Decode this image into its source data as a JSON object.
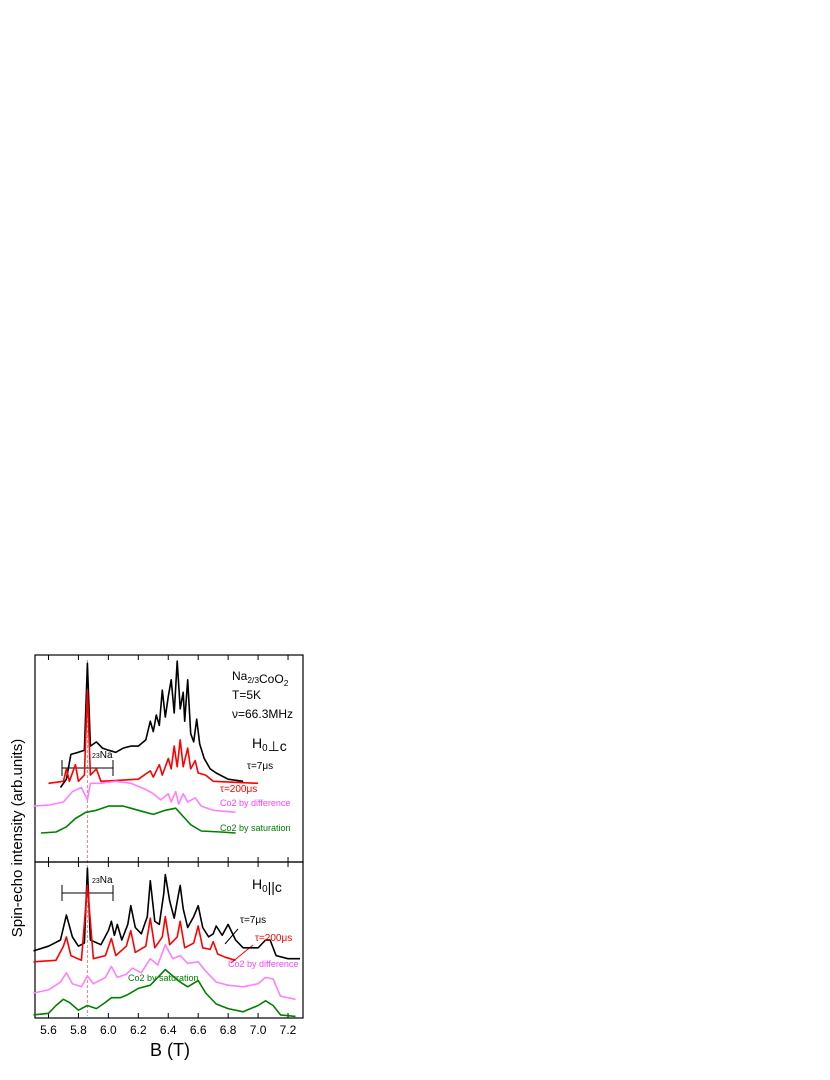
{
  "chart_data": [
    {
      "type": "line",
      "ylabel": "Spin-echo intensity (arb.units)",
      "xlim": [
        5.51,
        7.3
      ],
      "ylim": [
        0,
        10
      ],
      "annotations": [
        {
          "parts": [
            "Na",
            {
              "text": "2/3",
              "shift": "sub"
            },
            "CoO",
            {
              "text": "2",
              "shift": "sub"
            }
          ],
          "color": "#000000"
        },
        {
          "parts": [
            "T=5K"
          ],
          "color": "#000000"
        },
        {
          "parts": [
            "ν=66.3MHz"
          ],
          "color": "#000000"
        },
        {
          "parts": [
            "H",
            {
              "text": "0",
              "shift": "sub"
            },
            "⊥c"
          ],
          "color": "#000000"
        },
        {
          "parts": [
            "τ=7μs"
          ],
          "color": "#000000"
        },
        {
          "parts": [
            "τ=200μs"
          ],
          "color": "#ff0000"
        },
        {
          "parts": [
            "Co2 by difference"
          ],
          "color": "#ff40ff"
        },
        {
          "parts": [
            "Co2 by saturation"
          ],
          "color": "#008000"
        },
        {
          "parts": [
            {
              "text": "23",
              "shift": "sup"
            },
            "Na"
          ],
          "color": "#000000"
        }
      ],
      "series": [
        {
          "name": "τ=7μs",
          "color": "#000000",
          "x": [
            5.68,
            5.72,
            5.75,
            5.8,
            5.84,
            5.86,
            5.88,
            5.92,
            5.96,
            6.0,
            6.05,
            6.1,
            6.15,
            6.2,
            6.25,
            6.28,
            6.3,
            6.32,
            6.34,
            6.36,
            6.38,
            6.4,
            6.42,
            6.44,
            6.46,
            6.48,
            6.5,
            6.51,
            6.53,
            6.55,
            6.57,
            6.59,
            6.61,
            6.64,
            6.68,
            6.72,
            6.8,
            6.9
          ],
          "values": [
            3.6,
            4.0,
            5.2,
            5.3,
            5.4,
            9.6,
            5.6,
            5.8,
            5.5,
            5.4,
            5.3,
            5.5,
            5.6,
            5.6,
            5.9,
            6.8,
            6.3,
            7.1,
            6.6,
            8.3,
            7.0,
            8.0,
            8.8,
            7.2,
            9.7,
            7.4,
            8.2,
            6.8,
            8.8,
            6.2,
            5.8,
            6.9,
            5.7,
            5.0,
            4.5,
            4.3,
            4.0,
            3.9
          ]
        },
        {
          "name": "τ=200μs",
          "color": "#ff0000",
          "x": [
            5.6,
            5.7,
            5.72,
            5.74,
            5.78,
            5.8,
            5.84,
            5.86,
            5.88,
            5.92,
            5.95,
            6.2,
            6.28,
            6.3,
            6.34,
            6.36,
            6.4,
            6.42,
            6.44,
            6.46,
            6.48,
            6.5,
            6.53,
            6.55,
            6.58,
            6.6,
            6.65,
            6.7,
            7.0
          ],
          "values": [
            3.8,
            3.9,
            4.5,
            3.9,
            4.7,
            3.9,
            4.2,
            8.3,
            4.2,
            4.5,
            3.9,
            4.0,
            4.4,
            4.1,
            4.7,
            4.2,
            5.0,
            4.5,
            5.6,
            4.6,
            5.9,
            4.6,
            5.5,
            4.5,
            4.9,
            4.3,
            4.2,
            3.9,
            3.8
          ]
        },
        {
          "name": "Co2 by difference",
          "color": "#ff80ff",
          "x": [
            5.5,
            5.6,
            5.7,
            5.76,
            5.82,
            5.86,
            5.88,
            5.95,
            6.05,
            6.15,
            6.25,
            6.3,
            6.35,
            6.4,
            6.42,
            6.45,
            6.47,
            6.5,
            6.53,
            6.58,
            6.62,
            6.7,
            6.85
          ],
          "values": [
            2.7,
            2.75,
            2.9,
            3.4,
            3.6,
            3.0,
            3.8,
            3.8,
            3.9,
            3.8,
            3.5,
            3.3,
            3.0,
            3.3,
            2.9,
            3.4,
            2.8,
            3.3,
            2.9,
            3.1,
            2.7,
            2.5,
            2.4
          ]
        },
        {
          "name": "Co2 by saturation",
          "color": "#008000",
          "x": [
            5.55,
            5.65,
            5.72,
            5.78,
            5.85,
            5.92,
            6.0,
            6.1,
            6.2,
            6.3,
            6.38,
            6.45,
            6.5,
            6.55,
            6.62,
            6.75,
            6.85
          ],
          "values": [
            1.4,
            1.45,
            1.7,
            2.1,
            2.4,
            2.5,
            2.7,
            2.7,
            2.5,
            2.3,
            2.5,
            2.6,
            2.2,
            1.8,
            1.5,
            1.45,
            1.4
          ]
        }
      ]
    },
    {
      "type": "line",
      "xlabel": "B (T)",
      "xlim": [
        5.51,
        7.3
      ],
      "ylim": [
        0,
        10
      ],
      "xticks": [
        5.6,
        5.8,
        {
          "value": 6,
          "label": "6.0"
        },
        6.2,
        6.4,
        6.6,
        6.8,
        {
          "value": 7,
          "label": "7.0"
        },
        7.2
      ],
      "annotations": [
        {
          "parts": [
            "H",
            {
              "text": "0",
              "shift": "sub"
            },
            "||c"
          ],
          "color": "#000000"
        },
        {
          "parts": [
            "τ=7μs"
          ],
          "color": "#000000"
        },
        {
          "parts": [
            "τ=200μs"
          ],
          "color": "#ff0000"
        },
        {
          "parts": [
            "Co2 by difference"
          ],
          "color": "#ff40ff"
        },
        {
          "parts": [
            "Co2 by saturation"
          ],
          "color": "#008000"
        },
        {
          "parts": [
            {
              "text": "23",
              "shift": "sup"
            },
            "Na"
          ],
          "color": "#000000"
        }
      ],
      "series": [
        {
          "name": "τ=7μs",
          "color": "#000000",
          "x": [
            5.5,
            5.6,
            5.68,
            5.72,
            5.76,
            5.8,
            5.84,
            5.86,
            5.88,
            5.95,
            6.0,
            6.02,
            6.04,
            6.06,
            6.09,
            6.13,
            6.15,
            6.18,
            6.22,
            6.26,
            6.28,
            6.31,
            6.34,
            6.37,
            6.38,
            6.41,
            6.44,
            6.47,
            6.48,
            6.5,
            6.53,
            6.57,
            6.6,
            6.63,
            6.67,
            6.7,
            6.72,
            6.76,
            6.8,
            6.85,
            6.9,
            7.0,
            7.05,
            7.08,
            7.12,
            7.2,
            7.28
          ],
          "values": [
            4.3,
            4.6,
            5.0,
            6.6,
            5.2,
            4.6,
            4.8,
            9.6,
            5.0,
            4.7,
            5.6,
            6.2,
            5.3,
            6.0,
            5.0,
            6.0,
            7.2,
            5.8,
            5.4,
            6.5,
            8.8,
            6.2,
            6.0,
            8.0,
            9.2,
            7.5,
            6.4,
            8.0,
            8.5,
            7.0,
            5.8,
            6.5,
            7.2,
            5.8,
            5.2,
            5.4,
            5.9,
            5.3,
            6.0,
            5.0,
            4.5,
            4.5,
            5.0,
            5.0,
            4.0,
            3.8,
            3.8
          ]
        },
        {
          "name": "τ=200μs",
          "color": "#ff0000",
          "x": [
            5.5,
            5.65,
            5.7,
            5.72,
            5.75,
            5.82,
            5.86,
            5.9,
            5.98,
            6.02,
            6.05,
            6.12,
            6.15,
            6.18,
            6.25,
            6.28,
            6.31,
            6.36,
            6.38,
            6.41,
            6.46,
            6.48,
            6.51,
            6.57,
            6.6,
            6.63,
            6.68,
            6.7,
            6.73,
            6.78,
            6.85
          ],
          "values": [
            3.6,
            3.7,
            4.6,
            5.2,
            4.0,
            3.7,
            8.5,
            3.8,
            4.0,
            5.1,
            4.0,
            4.6,
            5.6,
            4.2,
            4.6,
            6.4,
            4.5,
            5.2,
            6.5,
            4.7,
            5.2,
            6.2,
            4.5,
            4.8,
            5.9,
            4.5,
            4.4,
            4.9,
            4.1,
            3.9,
            3.7
          ]
        },
        {
          "name": "Co2 by difference",
          "color": "#ff80ff",
          "x": [
            5.5,
            5.6,
            5.68,
            5.72,
            5.76,
            5.82,
            5.86,
            5.9,
            5.98,
            6.02,
            6.06,
            6.12,
            6.16,
            6.22,
            6.28,
            6.33,
            6.38,
            6.43,
            6.48,
            6.53,
            6.6,
            6.65,
            6.72,
            6.8,
            6.9,
            7.0,
            7.05,
            7.1,
            7.15,
            7.25
          ],
          "values": [
            1.6,
            1.8,
            2.3,
            2.9,
            2.2,
            2.0,
            2.7,
            2.2,
            2.6,
            3.3,
            2.6,
            2.8,
            3.2,
            2.9,
            3.8,
            3.4,
            4.7,
            3.8,
            4.0,
            3.5,
            3.6,
            3.0,
            2.3,
            2.1,
            2.0,
            2.2,
            2.6,
            2.5,
            1.4,
            1.2
          ]
        },
        {
          "name": "Co2 by saturation",
          "color": "#008000",
          "x": [
            5.5,
            5.6,
            5.65,
            5.7,
            5.74,
            5.8,
            5.86,
            5.92,
            5.98,
            6.02,
            6.08,
            6.13,
            6.2,
            6.28,
            6.33,
            6.38,
            6.43,
            6.48,
            6.53,
            6.6,
            6.65,
            6.72,
            6.8,
            6.9,
            7.0,
            7.05,
            7.1,
            7.15,
            7.25
          ],
          "values": [
            0.2,
            0.3,
            0.8,
            1.2,
            1.0,
            0.5,
            0.8,
            0.6,
            1.0,
            1.3,
            1.3,
            1.5,
            1.9,
            2.1,
            2.6,
            3.1,
            2.7,
            2.3,
            2.0,
            2.4,
            1.6,
            0.9,
            0.6,
            0.4,
            0.8,
            1.1,
            0.8,
            0.2,
            0.1
          ]
        }
      ]
    }
  ]
}
